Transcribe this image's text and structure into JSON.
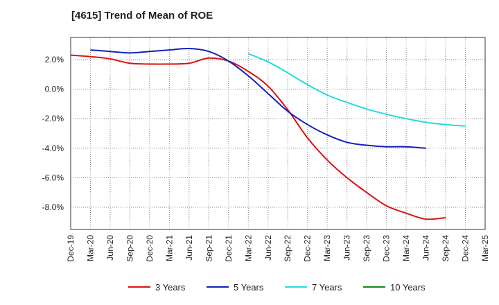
{
  "chart_data": {
    "type": "line",
    "title": "[4615]  Trend of Mean of ROE",
    "xlabel": "",
    "ylabel": "",
    "ylim": [
      -9.5,
      3.5
    ],
    "yticks": [
      2,
      0,
      -2,
      -4,
      -6,
      -8
    ],
    "ytick_labels": [
      "2.0%",
      "0.0%",
      "-2.0%",
      "-4.0%",
      "-6.0%",
      "-8.0%"
    ],
    "x_tick_labels": [
      "Dec-19",
      "Mar-20",
      "Jun-20",
      "Sep-20",
      "Dec-20",
      "Mar-21",
      "Jun-21",
      "Sep-21",
      "Dec-21",
      "Mar-22",
      "Jun-22",
      "Sep-22",
      "Dec-22",
      "Mar-23",
      "Jun-23",
      "Sep-23",
      "Dec-23",
      "Mar-24",
      "Jun-24",
      "Sep-24",
      "Dec-24",
      "Mar-25"
    ],
    "grid": true,
    "legend_position": "bottom",
    "series": [
      {
        "name": "3 Years",
        "color": "#dd1111",
        "start_index": 0,
        "values": [
          2.3,
          2.2,
          2.05,
          1.75,
          1.7,
          1.7,
          1.75,
          2.1,
          1.9,
          1.2,
          0.2,
          -1.4,
          -3.3,
          -4.8,
          -6.0,
          -7.0,
          -7.9,
          -8.4,
          -8.8,
          -8.7
        ]
      },
      {
        "name": "5 Years",
        "color": "#1122bb",
        "start_index": 1,
        "values": [
          2.65,
          2.55,
          2.45,
          2.55,
          2.65,
          2.75,
          2.55,
          1.9,
          0.9,
          -0.3,
          -1.5,
          -2.4,
          -3.1,
          -3.6,
          -3.8,
          -3.9,
          -3.9,
          -4.0
        ]
      },
      {
        "name": "7 Years",
        "color": "#22dddd",
        "start_index": 9,
        "values": [
          2.4,
          1.85,
          1.1,
          0.3,
          -0.4,
          -0.9,
          -1.35,
          -1.7,
          -2.0,
          -2.25,
          -2.4,
          -2.5
        ]
      },
      {
        "name": "10 Years",
        "color": "#118811",
        "start_index": 0,
        "values": []
      }
    ]
  }
}
